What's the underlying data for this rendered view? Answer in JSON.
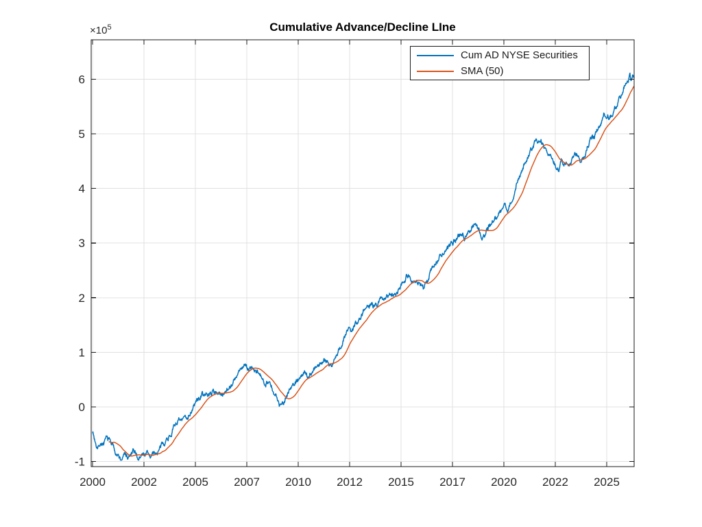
{
  "figure": {
    "title": "Cumulative Advance/Decline LIne",
    "background": "#ffffff"
  },
  "axes": {
    "exponent_label": {
      "base": "×10",
      "power": "5"
    },
    "x_ticks": [
      {
        "pos": 2000.0,
        "label": "2000"
      },
      {
        "pos": 2002.5,
        "label": "2002"
      },
      {
        "pos": 2005.0,
        "label": "2005"
      },
      {
        "pos": 2007.5,
        "label": "2007"
      },
      {
        "pos": 2010.0,
        "label": "2010"
      },
      {
        "pos": 2012.5,
        "label": "2012"
      },
      {
        "pos": 2015.0,
        "label": "2015"
      },
      {
        "pos": 2017.5,
        "label": "2017"
      },
      {
        "pos": 2020.0,
        "label": "2020"
      },
      {
        "pos": 2022.5,
        "label": "2022"
      },
      {
        "pos": 2025.0,
        "label": "2025"
      }
    ],
    "y_ticks": [
      {
        "pos": -1,
        "label": "-1"
      },
      {
        "pos": 0,
        "label": "0"
      },
      {
        "pos": 1,
        "label": "1"
      },
      {
        "pos": 2,
        "label": "2"
      },
      {
        "pos": 3,
        "label": "3"
      },
      {
        "pos": 4,
        "label": "4"
      },
      {
        "pos": 5,
        "label": "5"
      },
      {
        "pos": 6,
        "label": "6"
      }
    ],
    "grid": true,
    "colors": {
      "spine": "#1a1a1a",
      "grid": "#e0e0e0",
      "tick_label": "#262626"
    }
  },
  "legend": {
    "position": "top-right",
    "entries": [
      {
        "label": "Cum AD NYSE Securities",
        "color": "#0072BD"
      },
      {
        "label": "SMA (50)",
        "color": "#D95319"
      }
    ]
  },
  "chart_data": {
    "type": "line",
    "title": "Cumulative Advance/Decline LIne",
    "xlabel": "",
    "ylabel": "",
    "y_unit_multiplier": 100000,
    "xlim": [
      1999.93,
      2026.33
    ],
    "ylim": [
      -1.09,
      6.72
    ],
    "legend_position": "top-right",
    "grid": true,
    "series": [
      {
        "name": "Cum AD NYSE Securities",
        "color": "#0072BD",
        "style": "noisy-daily-line",
        "points": [
          [
            2000.0,
            -0.44
          ],
          [
            2000.1,
            -0.6
          ],
          [
            2000.25,
            -0.72
          ],
          [
            2000.42,
            -0.65
          ],
          [
            2000.55,
            -0.68
          ],
          [
            2000.7,
            -0.58
          ],
          [
            2000.85,
            -0.62
          ],
          [
            2000.95,
            -0.68
          ],
          [
            2001.1,
            -0.8
          ],
          [
            2001.25,
            -0.9
          ],
          [
            2001.38,
            -0.98
          ],
          [
            2001.5,
            -0.91
          ],
          [
            2001.6,
            -0.86
          ],
          [
            2001.72,
            -0.95
          ],
          [
            2001.85,
            -0.89
          ],
          [
            2002.0,
            -0.83
          ],
          [
            2002.12,
            -0.87
          ],
          [
            2002.25,
            -0.95
          ],
          [
            2002.38,
            -0.89
          ],
          [
            2002.5,
            -0.86
          ],
          [
            2002.65,
            -0.84
          ],
          [
            2002.8,
            -0.9
          ],
          [
            2002.95,
            -0.87
          ],
          [
            2003.1,
            -0.85
          ],
          [
            2003.25,
            -0.79
          ],
          [
            2003.4,
            -0.7
          ],
          [
            2003.55,
            -0.61
          ],
          [
            2003.7,
            -0.54
          ],
          [
            2003.85,
            -0.46
          ],
          [
            2004.0,
            -0.33
          ],
          [
            2004.15,
            -0.25
          ],
          [
            2004.3,
            -0.28
          ],
          [
            2004.45,
            -0.22
          ],
          [
            2004.6,
            -0.17
          ],
          [
            2004.75,
            -0.1
          ],
          [
            2004.9,
            -0.02
          ],
          [
            2005.05,
            0.1
          ],
          [
            2005.2,
            0.17
          ],
          [
            2005.35,
            0.24
          ],
          [
            2005.5,
            0.2
          ],
          [
            2005.65,
            0.23
          ],
          [
            2005.8,
            0.27
          ],
          [
            2006.0,
            0.29
          ],
          [
            2006.15,
            0.24
          ],
          [
            2006.3,
            0.21
          ],
          [
            2006.45,
            0.31
          ],
          [
            2006.6,
            0.37
          ],
          [
            2006.8,
            0.43
          ],
          [
            2007.0,
            0.53
          ],
          [
            2007.15,
            0.64
          ],
          [
            2007.3,
            0.74
          ],
          [
            2007.4,
            0.78
          ],
          [
            2007.52,
            0.67
          ],
          [
            2007.65,
            0.71
          ],
          [
            2007.8,
            0.72
          ],
          [
            2007.95,
            0.63
          ],
          [
            2008.1,
            0.56
          ],
          [
            2008.25,
            0.51
          ],
          [
            2008.4,
            0.46
          ],
          [
            2008.52,
            0.5
          ],
          [
            2008.65,
            0.4
          ],
          [
            2008.8,
            0.22
          ],
          [
            2008.95,
            0.15
          ],
          [
            2009.08,
            0.06
          ],
          [
            2009.2,
            0.13
          ],
          [
            2009.3,
            0.07
          ],
          [
            2009.42,
            0.22
          ],
          [
            2009.55,
            0.31
          ],
          [
            2009.7,
            0.37
          ],
          [
            2009.85,
            0.44
          ],
          [
            2010.0,
            0.52
          ],
          [
            2010.15,
            0.57
          ],
          [
            2010.3,
            0.61
          ],
          [
            2010.45,
            0.55
          ],
          [
            2010.6,
            0.62
          ],
          [
            2010.8,
            0.7
          ],
          [
            2011.0,
            0.77
          ],
          [
            2011.18,
            0.83
          ],
          [
            2011.35,
            0.88
          ],
          [
            2011.5,
            0.81
          ],
          [
            2011.62,
            0.77
          ],
          [
            2011.8,
            0.89
          ],
          [
            2012.0,
            1.04
          ],
          [
            2012.15,
            1.17
          ],
          [
            2012.3,
            1.3
          ],
          [
            2012.45,
            1.42
          ],
          [
            2012.58,
            1.38
          ],
          [
            2012.75,
            1.5
          ],
          [
            2012.9,
            1.58
          ],
          [
            2013.05,
            1.68
          ],
          [
            2013.2,
            1.8
          ],
          [
            2013.33,
            1.9
          ],
          [
            2013.45,
            1.83
          ],
          [
            2013.57,
            1.88
          ],
          [
            2013.68,
            1.82
          ],
          [
            2013.82,
            1.88
          ],
          [
            2014.0,
            1.95
          ],
          [
            2014.2,
            2.01
          ],
          [
            2014.38,
            2.06
          ],
          [
            2014.5,
            2.08
          ],
          [
            2014.65,
            2.04
          ],
          [
            2014.82,
            2.14
          ],
          [
            2015.0,
            2.25
          ],
          [
            2015.15,
            2.35
          ],
          [
            2015.3,
            2.41
          ],
          [
            2015.45,
            2.36
          ],
          [
            2015.6,
            2.32
          ],
          [
            2015.75,
            2.28
          ],
          [
            2015.9,
            2.26
          ],
          [
            2016.05,
            2.22
          ],
          [
            2016.13,
            2.18
          ],
          [
            2016.28,
            2.28
          ],
          [
            2016.42,
            2.45
          ],
          [
            2016.55,
            2.58
          ],
          [
            2016.7,
            2.68
          ],
          [
            2016.85,
            2.74
          ],
          [
            2017.0,
            2.79
          ],
          [
            2017.2,
            2.86
          ],
          [
            2017.35,
            2.92
          ],
          [
            2017.5,
            3.0
          ],
          [
            2017.65,
            3.08
          ],
          [
            2017.8,
            3.12
          ],
          [
            2017.95,
            3.16
          ],
          [
            2018.08,
            3.11
          ],
          [
            2018.22,
            3.19
          ],
          [
            2018.35,
            3.25
          ],
          [
            2018.5,
            3.31
          ],
          [
            2018.62,
            3.35
          ],
          [
            2018.75,
            3.28
          ],
          [
            2018.85,
            3.2
          ],
          [
            2018.97,
            3.08
          ],
          [
            2019.1,
            3.2
          ],
          [
            2019.25,
            3.3
          ],
          [
            2019.4,
            3.37
          ],
          [
            2019.55,
            3.44
          ],
          [
            2019.7,
            3.51
          ],
          [
            2019.85,
            3.6
          ],
          [
            2020.0,
            3.7
          ],
          [
            2020.07,
            3.75
          ],
          [
            2020.18,
            3.56
          ],
          [
            2020.28,
            3.68
          ],
          [
            2020.38,
            3.74
          ],
          [
            2020.5,
            3.93
          ],
          [
            2020.65,
            4.1
          ],
          [
            2020.8,
            4.25
          ],
          [
            2021.0,
            4.44
          ],
          [
            2021.15,
            4.57
          ],
          [
            2021.3,
            4.69
          ],
          [
            2021.45,
            4.79
          ],
          [
            2021.58,
            4.87
          ],
          [
            2021.68,
            4.79
          ],
          [
            2021.8,
            4.85
          ],
          [
            2021.92,
            4.79
          ],
          [
            2022.05,
            4.7
          ],
          [
            2022.18,
            4.62
          ],
          [
            2022.3,
            4.55
          ],
          [
            2022.45,
            4.47
          ],
          [
            2022.58,
            4.37
          ],
          [
            2022.68,
            4.32
          ],
          [
            2022.8,
            4.5
          ],
          [
            2022.92,
            4.45
          ],
          [
            2023.05,
            4.48
          ],
          [
            2023.15,
            4.42
          ],
          [
            2023.28,
            4.5
          ],
          [
            2023.42,
            4.62
          ],
          [
            2023.52,
            4.68
          ],
          [
            2023.63,
            4.57
          ],
          [
            2023.73,
            4.5
          ],
          [
            2023.85,
            4.55
          ],
          [
            2023.97,
            4.65
          ],
          [
            2024.1,
            4.78
          ],
          [
            2024.25,
            4.88
          ],
          [
            2024.4,
            4.96
          ],
          [
            2024.55,
            5.08
          ],
          [
            2024.7,
            5.22
          ],
          [
            2024.88,
            5.4
          ],
          [
            2025.02,
            5.34
          ],
          [
            2025.15,
            5.29
          ],
          [
            2025.28,
            5.33
          ],
          [
            2025.4,
            5.45
          ],
          [
            2025.55,
            5.58
          ],
          [
            2025.7,
            5.72
          ],
          [
            2025.85,
            5.88
          ],
          [
            2026.0,
            6.0
          ],
          [
            2026.12,
            6.08
          ],
          [
            2026.2,
            5.98
          ],
          [
            2026.33,
            6.05
          ]
        ]
      },
      {
        "name": "SMA (50)",
        "color": "#D95319",
        "style": "smooth-line",
        "derived": "trailing simple moving average, window 50 samples, of series 0",
        "window": 50,
        "start_year": 2000.79,
        "end_value": 5.8
      }
    ]
  }
}
